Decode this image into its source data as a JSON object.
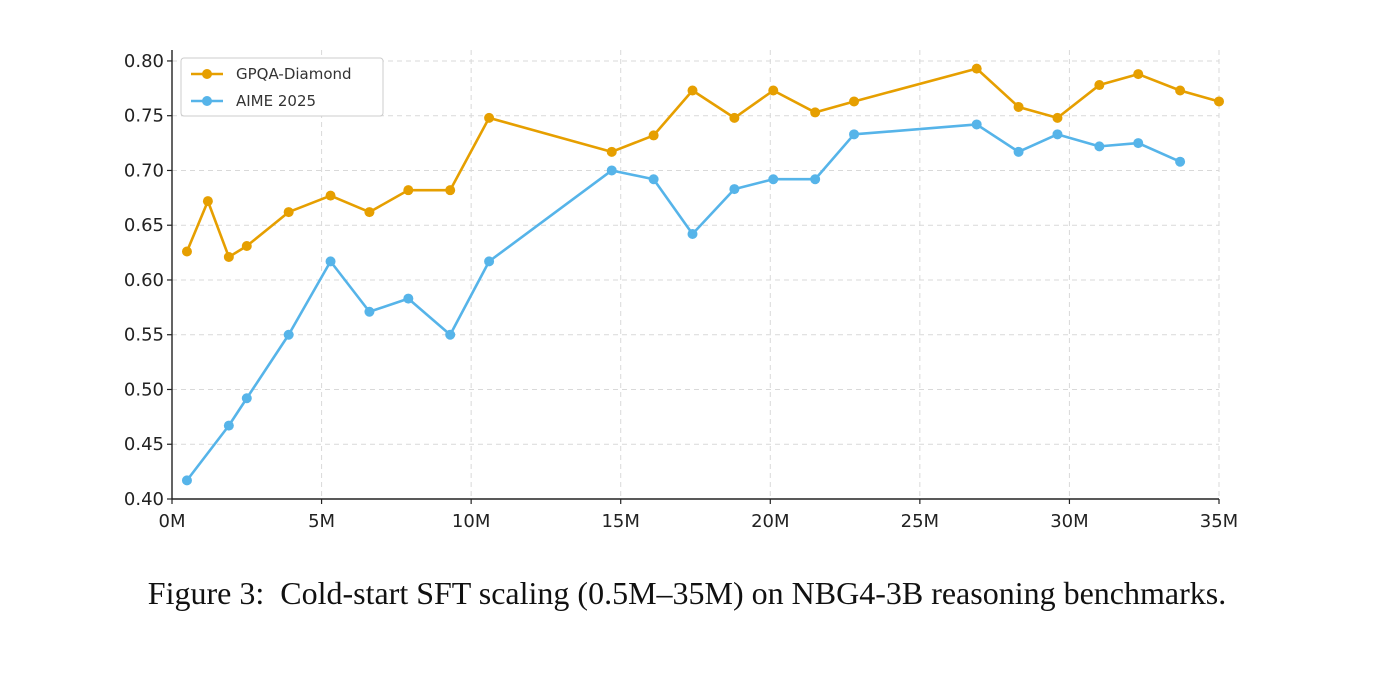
{
  "caption": "Figure 3:  Cold-start SFT scaling (0.5M–35M) on NBG4-3B reasoning benchmarks.",
  "chart_data": {
    "type": "line",
    "title": "",
    "xlabel": "",
    "ylabel": "",
    "xlim": [
      0,
      35
    ],
    "ylim": [
      0.4,
      0.81
    ],
    "xticks": [
      0,
      5,
      10,
      15,
      20,
      25,
      30,
      35
    ],
    "xtick_labels": [
      "0M",
      "5M",
      "10M",
      "15M",
      "20M",
      "25M",
      "30M",
      "35M"
    ],
    "yticks": [
      0.4,
      0.45,
      0.5,
      0.55,
      0.6,
      0.65,
      0.7,
      0.75,
      0.8
    ],
    "ytick_labels": [
      "0.40",
      "0.45",
      "0.50",
      "0.55",
      "0.60",
      "0.65",
      "0.70",
      "0.75",
      "0.80"
    ],
    "grid": true,
    "legend_position": "top-left",
    "series": [
      {
        "name": "GPQA-Diamond",
        "color": "#E69F00",
        "x": [
          0.5,
          1.2,
          1.9,
          2.5,
          3.9,
          5.3,
          6.6,
          7.9,
          9.3,
          10.6,
          14.7,
          16.1,
          17.4,
          18.8,
          20.1,
          21.5,
          22.8,
          26.9,
          28.3,
          29.6,
          31.0,
          32.3,
          33.7,
          35.0
        ],
        "y": [
          0.626,
          0.672,
          0.621,
          0.631,
          0.662,
          0.677,
          0.662,
          0.682,
          0.682,
          0.748,
          0.717,
          0.732,
          0.773,
          0.748,
          0.773,
          0.753,
          0.763,
          0.793,
          0.758,
          0.748,
          0.778,
          0.788,
          0.773,
          0.763
        ]
      },
      {
        "name": "AIME 2025",
        "color": "#56B4E9",
        "x": [
          0.5,
          1.9,
          2.5,
          3.9,
          5.3,
          6.6,
          7.9,
          9.3,
          10.6,
          14.7,
          16.1,
          17.4,
          18.8,
          20.1,
          21.5,
          22.8,
          26.9,
          28.3,
          29.6,
          31.0,
          32.3,
          33.7
        ],
        "y": [
          0.417,
          0.467,
          0.492,
          0.55,
          0.617,
          0.571,
          0.583,
          0.55,
          0.617,
          0.7,
          0.692,
          0.642,
          0.683,
          0.692,
          0.692,
          0.733,
          0.742,
          0.717,
          0.733,
          0.722,
          0.725,
          0.708
        ]
      }
    ]
  }
}
